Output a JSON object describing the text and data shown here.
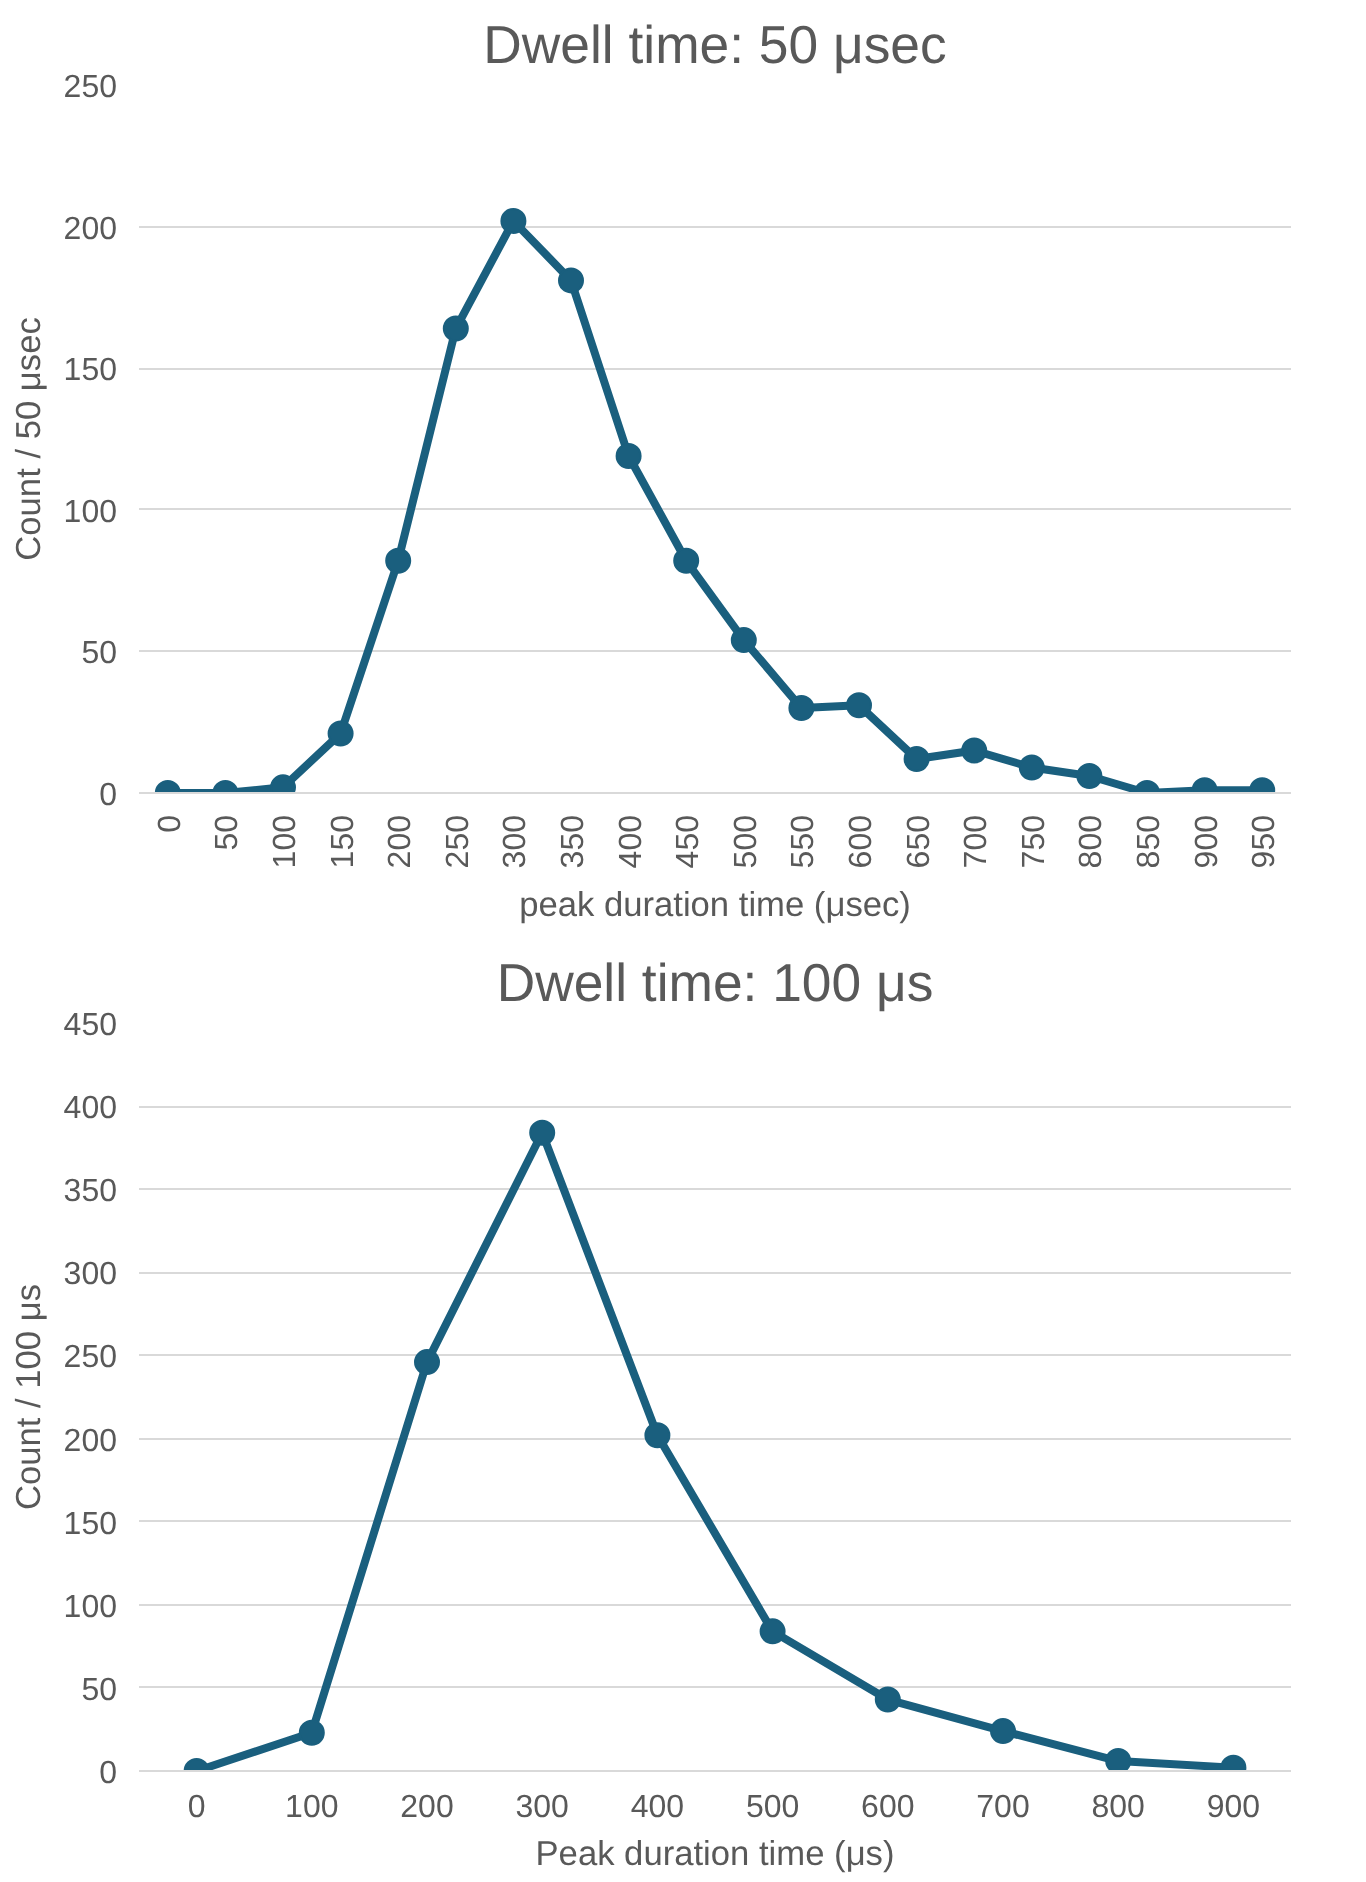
{
  "chart_data": [
    {
      "type": "line",
      "title": "Dwell time: 50 μsec",
      "xlabel": "peak duration time (μsec)",
      "ylabel": "Count / 50 μsec",
      "categories": [
        "0",
        "50",
        "100",
        "150",
        "200",
        "250",
        "300",
        "350",
        "400",
        "450",
        "500",
        "550",
        "600",
        "650",
        "700",
        "750",
        "800",
        "850",
        "900",
        "950"
      ],
      "series": [
        {
          "color": "#1a5f7e",
          "values": [
            0,
            0,
            2,
            21,
            82,
            164,
            202,
            181,
            119,
            82,
            54,
            30,
            31,
            12,
            15,
            9,
            6,
            0,
            1,
            1
          ]
        }
      ],
      "ylim": [
        0,
        250
      ],
      "yticks": [
        0,
        50,
        100,
        150,
        200,
        250
      ],
      "grid": "y",
      "marker": "circle",
      "line_style": "solid"
    },
    {
      "type": "line",
      "title": "Dwell time: 100 μs",
      "xlabel": "Peak duration time (μs)",
      "ylabel": "Count / 100 μs",
      "categories": [
        "0",
        "100",
        "200",
        "300",
        "400",
        "500",
        "600",
        "700",
        "800",
        "900"
      ],
      "series": [
        {
          "color": "#1a5f7e",
          "values": [
            0,
            23,
            246,
            384,
            202,
            84,
            43,
            24,
            6,
            2
          ]
        }
      ],
      "ylim": [
        0,
        450
      ],
      "yticks": [
        0,
        50,
        100,
        150,
        200,
        250,
        300,
        350,
        400,
        450
      ],
      "grid": "y",
      "marker": "circle",
      "line_style": "solid"
    }
  ]
}
